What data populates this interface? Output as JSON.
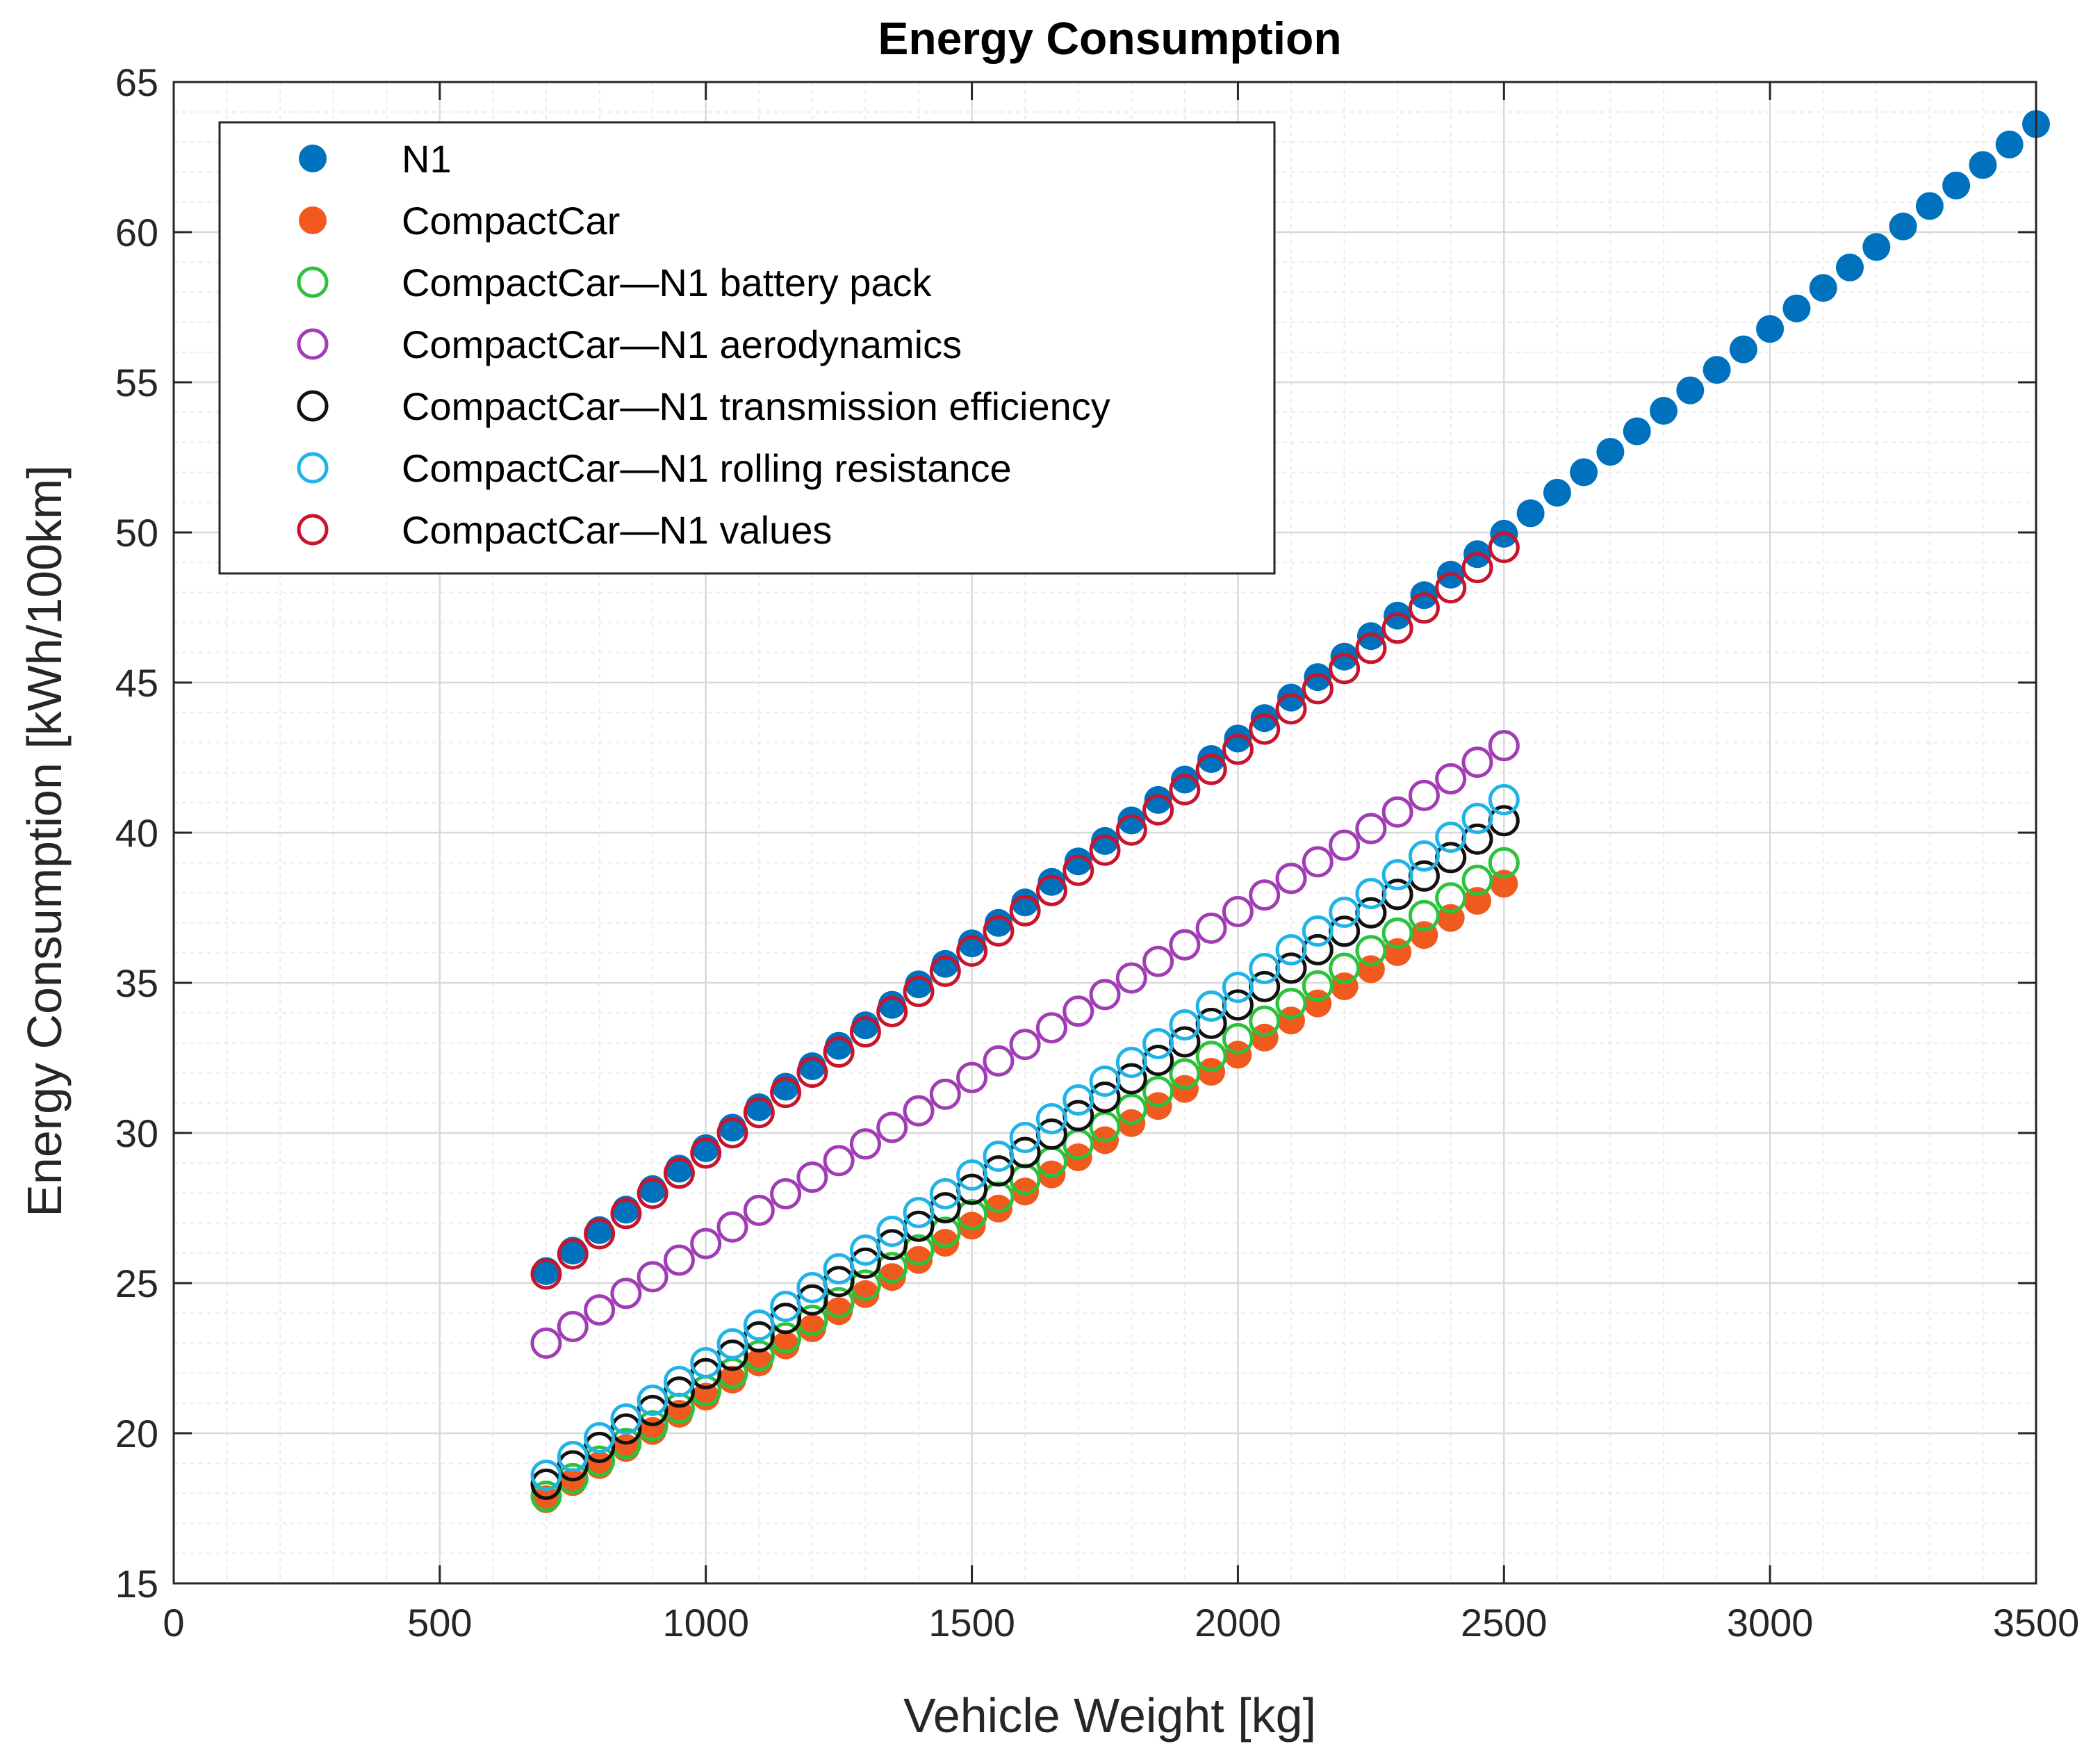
{
  "chart_data": {
    "type": "scatter",
    "title": "Energy Consumption",
    "xlabel": "Vehicle Weight [kg]",
    "ylabel": "Energy Consumption [kWh/100km]",
    "xlim": [
      0,
      3500
    ],
    "ylim": [
      15,
      65
    ],
    "xticks": [
      0,
      500,
      1000,
      1500,
      2000,
      2500,
      3000,
      3500
    ],
    "yticks": [
      15,
      20,
      25,
      30,
      35,
      40,
      45,
      50,
      55,
      60,
      65
    ],
    "grid": true,
    "minor_grid": true,
    "legend_position": "top-left",
    "series": [
      {
        "name": "N1",
        "marker": "filled",
        "color": "#0072BD",
        "x_start": 700,
        "x_end": 3500,
        "x_step": 50,
        "y_start": 25.4,
        "y_end": 63.6
      },
      {
        "name": "CompactCar",
        "marker": "filled",
        "color": "#F05A1E",
        "x_start": 700,
        "x_end": 2500,
        "x_step": 50,
        "y_start": 17.8,
        "y_end": 38.3
      },
      {
        "name": "CompactCar—N1 battery pack",
        "marker": "open",
        "color": "#2BC23C",
        "x_start": 700,
        "x_end": 2500,
        "x_step": 50,
        "y_start": 17.9,
        "y_end": 39.0
      },
      {
        "name": "CompactCar—N1 aerodynamics",
        "marker": "open",
        "color": "#A03CB4",
        "x_start": 700,
        "x_end": 2500,
        "x_step": 50,
        "y_start": 23.0,
        "y_end": 42.9
      },
      {
        "name": "CompactCar—N1 transmission efficiency",
        "marker": "open",
        "color": "#111111",
        "x_start": 700,
        "x_end": 2500,
        "x_step": 50,
        "y_start": 18.3,
        "y_end": 40.4
      },
      {
        "name": "CompactCar—N1 rolling resistance",
        "marker": "open",
        "color": "#20B4E6",
        "x_start": 700,
        "x_end": 2500,
        "x_step": 50,
        "y_start": 18.6,
        "y_end": 41.1
      },
      {
        "name": "CompactCar—N1 values",
        "marker": "open",
        "color": "#C8142D",
        "x_start": 700,
        "x_end": 2500,
        "x_step": 50,
        "y_start": 25.3,
        "y_end": 49.5
      }
    ]
  }
}
